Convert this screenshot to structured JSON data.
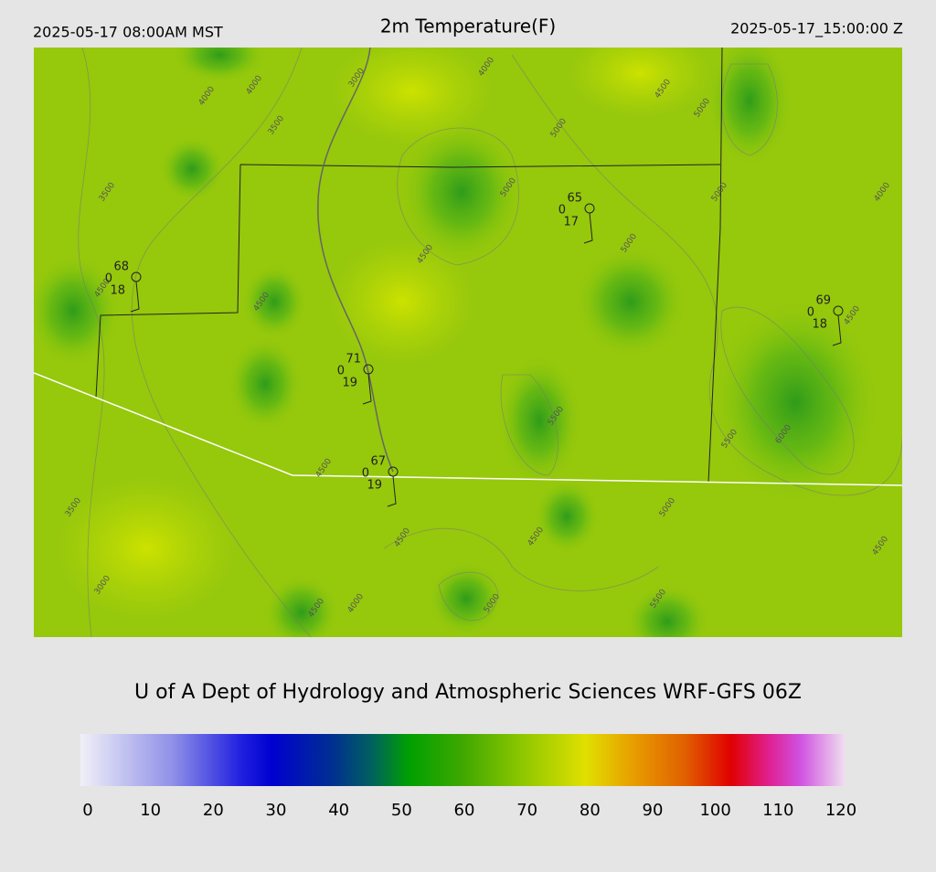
{
  "header": {
    "valid_local": "2025-05-17 08:00AM MST",
    "title": "2m Temperature(F)",
    "valid_utc": "2025-05-17_15:00:00 Z"
  },
  "stations": [
    {
      "temp": "68",
      "code": "0",
      "dew": "18"
    },
    {
      "temp": "65",
      "code": "0",
      "dew": "17"
    },
    {
      "temp": "69",
      "code": "0",
      "dew": "18"
    },
    {
      "temp": "71",
      "code": "0",
      "dew": "19"
    },
    {
      "temp": "67",
      "code": "0",
      "dew": "19"
    }
  ],
  "contour_labels": [
    "4000",
    "4000",
    "3000",
    "4000",
    "4500",
    "5000",
    "3500",
    "5000",
    "3500",
    "5000",
    "5000",
    "4000",
    "4500",
    "5000",
    "4500",
    "4500",
    "4500",
    "5500",
    "5500",
    "6000",
    "4500",
    "3500",
    "5000",
    "4500",
    "4500",
    "4500",
    "3000",
    "4500",
    "4000",
    "5000",
    "5500"
  ],
  "footer": "U of A Dept of Hydrology and Atmospheric Sciences WRF-GFS 06Z",
  "colorbar": {
    "range": [
      0,
      120
    ],
    "ticks": [
      0,
      10,
      20,
      30,
      40,
      50,
      60,
      70,
      80,
      90,
      100,
      110,
      120
    ]
  }
}
